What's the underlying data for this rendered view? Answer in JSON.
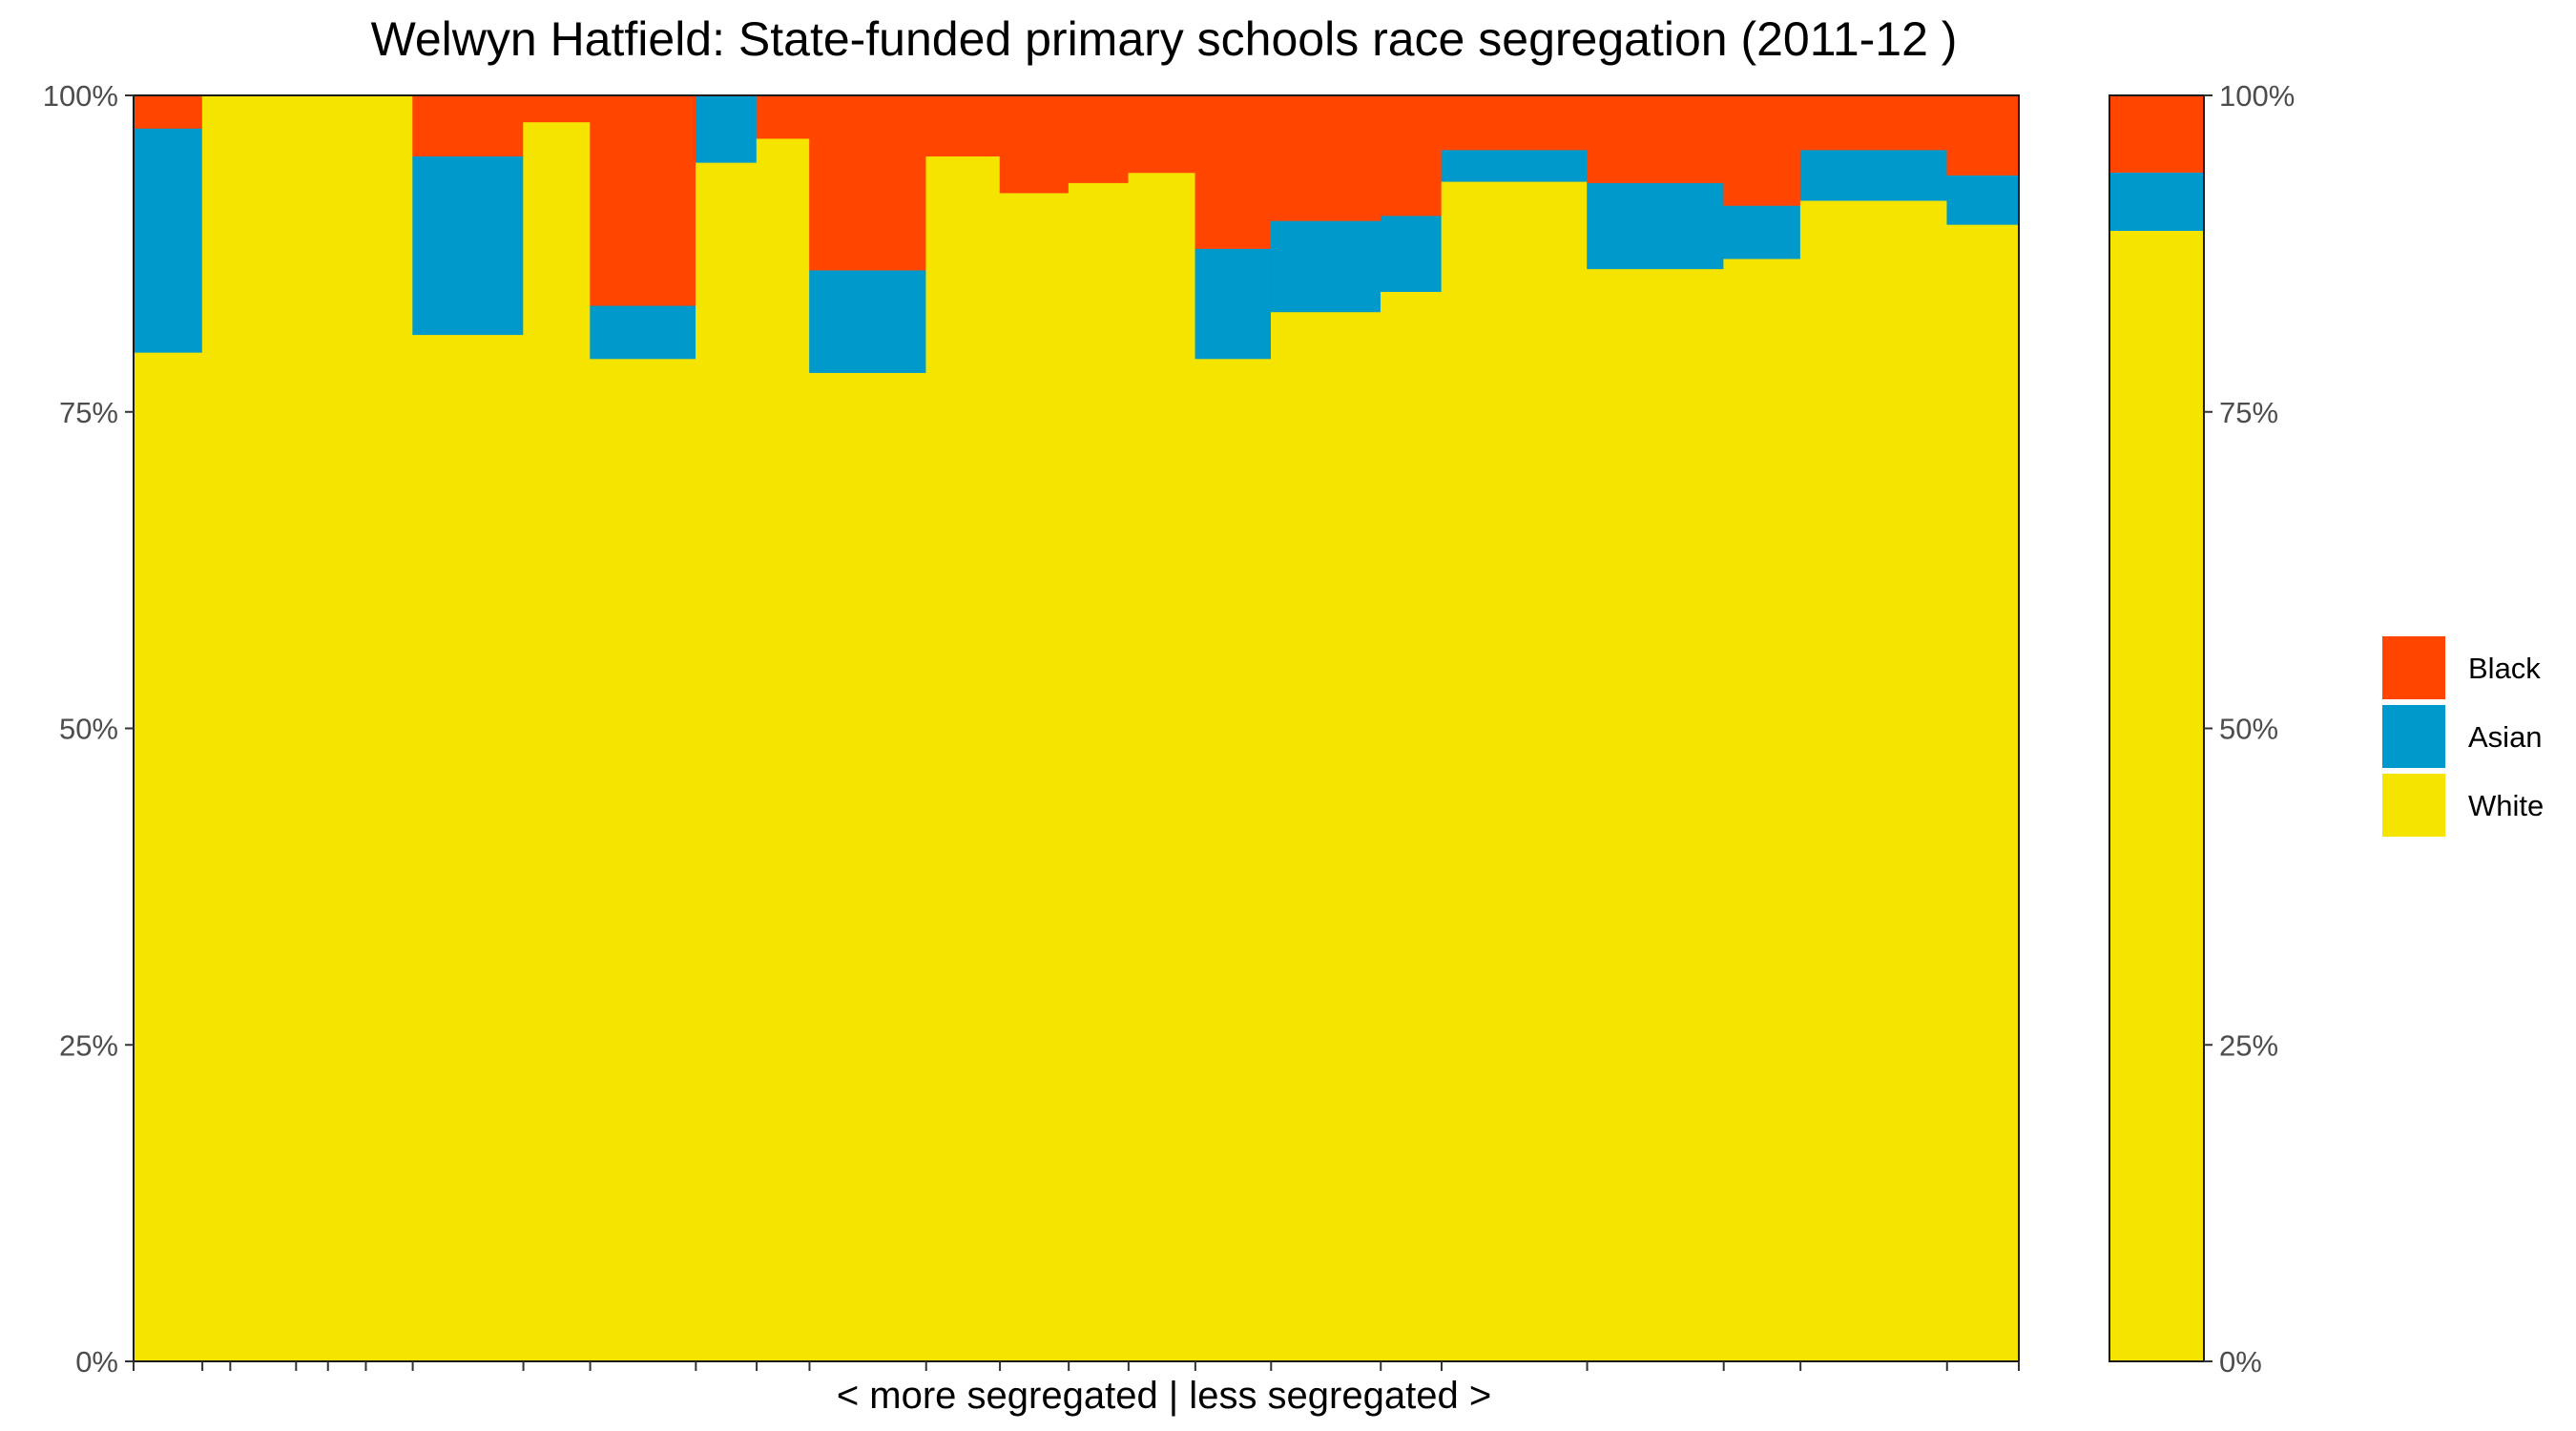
{
  "chart_data": {
    "type": "bar",
    "variant": "stacked-percent-variable-width",
    "title": "Welwyn Hatfield: State-funded primary schools race segregation (2011-12 )",
    "xlabel": "< more segregated | less segregated >",
    "ylabel": "",
    "ylim": [
      0,
      100
    ],
    "y_ticks": [
      "0%",
      "25%",
      "50%",
      "75%",
      "100%"
    ],
    "grid": false,
    "legend_position": "right",
    "legend": [
      {
        "name": "Black",
        "color": "#FF4500"
      },
      {
        "name": "Asian",
        "color": "#0099CC"
      },
      {
        "name": "White",
        "color": "#F5E400"
      }
    ],
    "stack_order_bottom_to_top": [
      "White",
      "Asian",
      "Black"
    ],
    "bars": [
      {
        "pupils": 69,
        "White": 79.7,
        "Asian": 17.7,
        "Black": 2.6
      },
      {
        "pupils": 28,
        "White": 100,
        "Asian": 0,
        "Black": 0
      },
      {
        "pupils": 66,
        "White": 100,
        "Asian": 0,
        "Black": 0
      },
      {
        "pupils": 32,
        "White": 100,
        "Asian": 0,
        "Black": 0
      },
      {
        "pupils": 38,
        "White": 100,
        "Asian": 0,
        "Black": 0
      },
      {
        "pupils": 47,
        "White": 100,
        "Asian": 0,
        "Black": 0
      },
      {
        "pupils": 111,
        "White": 81.1,
        "Asian": 14.1,
        "Black": 4.8
      },
      {
        "pupils": 67,
        "White": 97.9,
        "Asian": 0,
        "Black": 2.1
      },
      {
        "pupils": 106,
        "White": 79.2,
        "Asian": 4.2,
        "Black": 16.6
      },
      {
        "pupils": 61,
        "White": 94.7,
        "Asian": 5.3,
        "Black": 0
      },
      {
        "pupils": 53,
        "White": 96.6,
        "Asian": 0,
        "Black": 3.4
      },
      {
        "pupils": 117,
        "White": 78.1,
        "Asian": 8.1,
        "Black": 13.8
      },
      {
        "pupils": 74,
        "White": 95.2,
        "Asian": 0,
        "Black": 4.8
      },
      {
        "pupils": 69,
        "White": 92.3,
        "Asian": 0,
        "Black": 7.7
      },
      {
        "pupils": 60,
        "White": 93.1,
        "Asian": 0,
        "Black": 6.9
      },
      {
        "pupils": 67,
        "White": 93.9,
        "Asian": 0,
        "Black": 6.1
      },
      {
        "pupils": 76,
        "White": 79.2,
        "Asian": 8.7,
        "Black": 12.1
      },
      {
        "pupils": 110,
        "White": 82.9,
        "Asian": 7.2,
        "Black": 9.9
      },
      {
        "pupils": 61,
        "White": 84.5,
        "Asian": 6.0,
        "Black": 9.5
      },
      {
        "pupils": 146,
        "White": 93.2,
        "Asian": 2.5,
        "Black": 4.3
      },
      {
        "pupils": 137,
        "White": 86.3,
        "Asian": 6.8,
        "Black": 6.9
      },
      {
        "pupils": 77,
        "White": 87.1,
        "Asian": 4.2,
        "Black": 8.7
      },
      {
        "pupils": 147,
        "White": 91.7,
        "Asian": 4.0,
        "Black": 4.3
      },
      {
        "pupils": 72,
        "White": 89.8,
        "Asian": 3.9,
        "Black": 6.3
      }
    ],
    "overall": {
      "White": 89.3,
      "Asian": 4.6,
      "Black": 6.1
    }
  }
}
